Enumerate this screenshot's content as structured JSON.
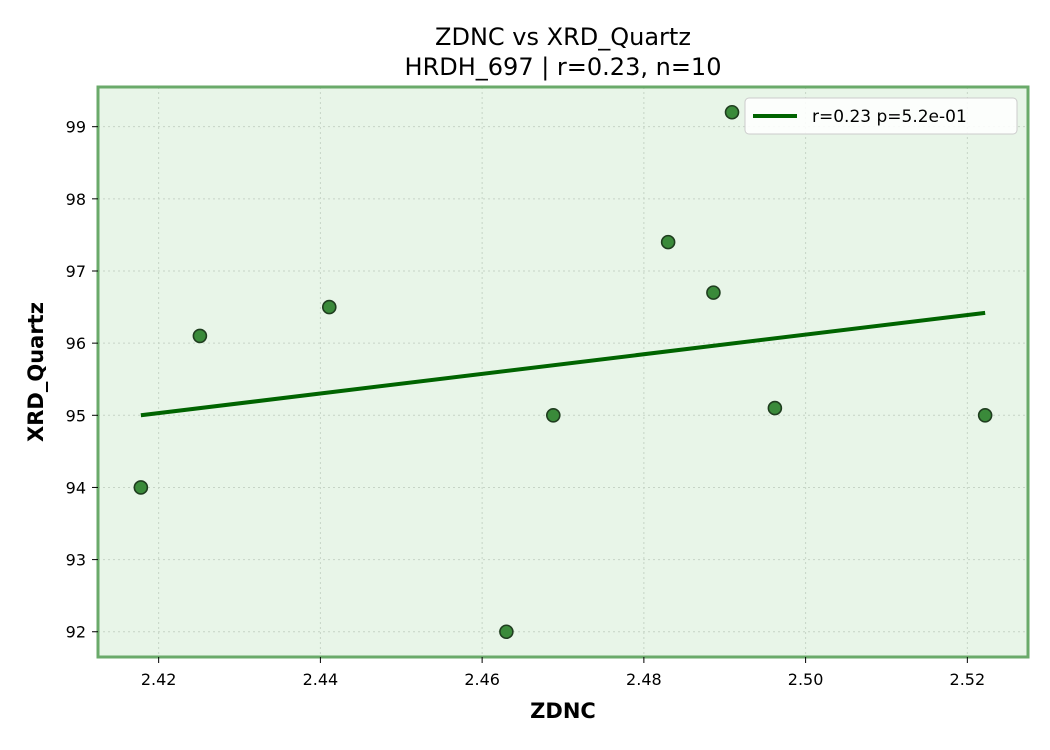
{
  "chart_data": {
    "type": "scatter",
    "title": "ZDNC vs XRD_Quartz",
    "subtitle": "HRDH_697 | r=0.23, n=10",
    "xlabel": "ZDNC",
    "ylabel": "XRD_Quartz",
    "xlim": [
      2.4125,
      2.5275
    ],
    "ylim": [
      91.65,
      99.55
    ],
    "x_ticks": [
      2.42,
      2.44,
      2.46,
      2.48,
      2.5,
      2.52
    ],
    "x_tick_labels": [
      "2.42",
      "2.44",
      "2.46",
      "2.48",
      "2.50",
      "2.52"
    ],
    "y_ticks": [
      92,
      93,
      94,
      95,
      96,
      97,
      98,
      99
    ],
    "y_tick_labels": [
      "92",
      "93",
      "94",
      "95",
      "96",
      "97",
      "98",
      "99"
    ],
    "grid": true,
    "legend_position": "top-right",
    "series": [
      {
        "type": "scatter",
        "color": "#3a8a3a",
        "x": [
          2.4178,
          2.4251,
          2.4411,
          2.463,
          2.4688,
          2.483,
          2.4886,
          2.4909,
          2.4962,
          2.5222
        ],
        "y": [
          94.0,
          96.1,
          96.5,
          92.0,
          95.0,
          97.4,
          96.7,
          99.2,
          95.1,
          95.0
        ]
      },
      {
        "type": "line",
        "name": "r=0.23  p=5.2e-01",
        "color": "#006400",
        "x": [
          2.4178,
          2.5222
        ],
        "y": [
          95.0,
          96.42
        ]
      }
    ],
    "colors": {
      "plot_background": "#e8f5e8",
      "plot_border": "#6aaa6a",
      "grid": "#c6d4c6",
      "marker_edge": "#1f3d1f"
    }
  }
}
